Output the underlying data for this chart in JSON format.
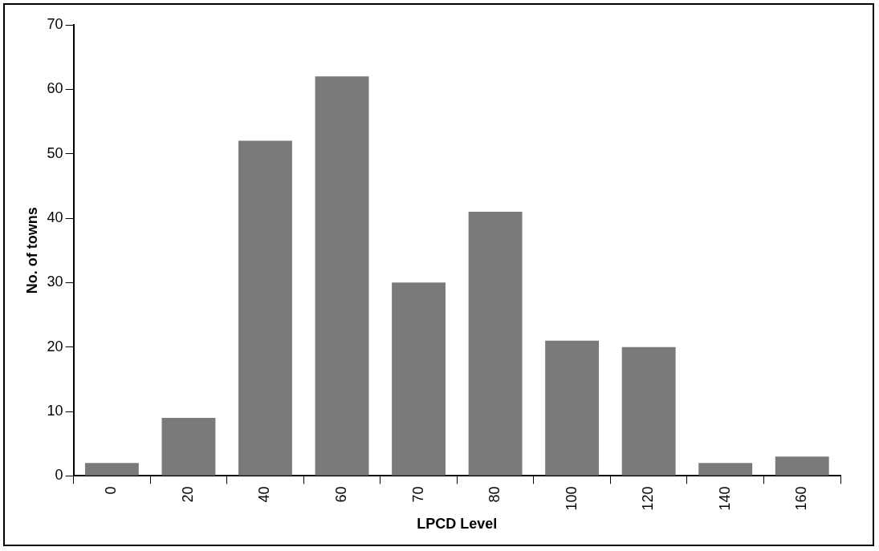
{
  "chart_data": {
    "type": "bar",
    "xlabel": "LPCD Level",
    "ylabel": "No. of towns",
    "categories": [
      "0",
      "20",
      "40",
      "60",
      "70",
      "80",
      "100",
      "120",
      "140",
      "160"
    ],
    "values": [
      2,
      9,
      52,
      62,
      30,
      41,
      21,
      20,
      2,
      3
    ],
    "color": "#7a7a7a",
    "ylim": [
      0,
      70
    ],
    "yticks": [
      0,
      10,
      20,
      30,
      40,
      50,
      60,
      70
    ],
    "grid": false,
    "legend": false
  }
}
